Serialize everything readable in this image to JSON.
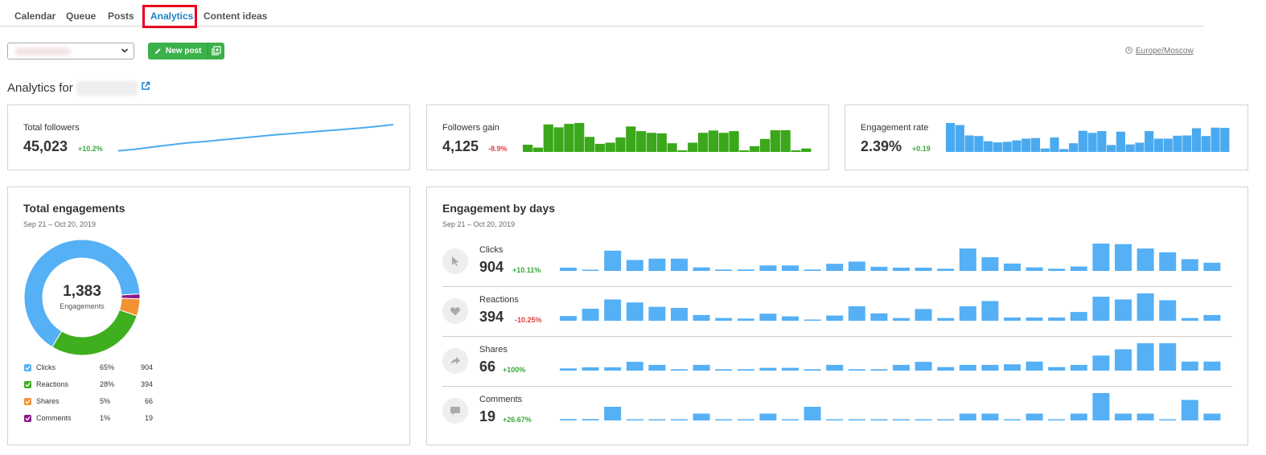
{
  "tabs": [
    {
      "label": "Calendar"
    },
    {
      "label": "Queue"
    },
    {
      "label": "Posts"
    },
    {
      "label": "Analytics"
    },
    {
      "label": "Content ideas"
    }
  ],
  "toolbar": {
    "new_post_label": "New post",
    "timezone": "Europe/Moscow"
  },
  "analytics_title": "Analytics for",
  "colors": {
    "accent": "#1e80c2",
    "green_button": "#3bb14a",
    "bar_blue": "#4aaaf0",
    "bar_green": "#3aa81a",
    "clicks": "#55b0f5",
    "reactions": "#3fae1f",
    "shares": "#f39233",
    "comments": "#8b1a8b"
  },
  "summary": {
    "total_followers": {
      "label": "Total followers",
      "value": "45,023",
      "change": "+10.2%"
    },
    "followers_gain": {
      "label": "Followers gain",
      "value": "4,125",
      "change": "-8.9%"
    },
    "engagement_rate": {
      "label": "Engagement rate",
      "value": "2.39%",
      "change": "+0.19"
    }
  },
  "total_engagements": {
    "title": "Total engagements",
    "date_range": "Sep 21 – Oct 20, 2019",
    "total": "1,383",
    "total_label": "Engagements",
    "legend": [
      {
        "label": "Clicks",
        "pct": "65%",
        "value": "904",
        "color": "#55b0f5"
      },
      {
        "label": "Reactions",
        "pct": "28%",
        "value": "394",
        "color": "#3fae1f"
      },
      {
        "label": "Shares",
        "pct": "5%",
        "value": "66",
        "color": "#f39233"
      },
      {
        "label": "Comments",
        "pct": "1%",
        "value": "19",
        "color": "#8b1a8b"
      }
    ]
  },
  "engagement_by_days": {
    "title": "Engagement by days",
    "date_range": "Sep 21 – Oct 20, 2019",
    "rows": [
      {
        "label": "Clicks",
        "value": "904",
        "change": "+10.11%",
        "icon": "cursor-icon"
      },
      {
        "label": "Reactions",
        "value": "394",
        "change": "-10.25%",
        "icon": "heart-icon"
      },
      {
        "label": "Shares",
        "value": "66",
        "change": "+100%",
        "icon": "share-arrow-icon"
      },
      {
        "label": "Comments",
        "value": "19",
        "change": "+26.67%",
        "icon": "comment-icon"
      }
    ]
  },
  "chart_data": [
    {
      "type": "line",
      "name": "followers_trend",
      "values": [
        0.04,
        0.1,
        0.18,
        0.26,
        0.33,
        0.38,
        0.44,
        0.5,
        0.56,
        0.62,
        0.67,
        0.72,
        0.77,
        0.82,
        0.87,
        0.93,
        1.0
      ]
    },
    {
      "type": "bar",
      "name": "followers_gain_daily",
      "values": [
        0.25,
        0.15,
        0.95,
        0.85,
        0.97,
        1.0,
        0.52,
        0.28,
        0.32,
        0.5,
        0.88,
        0.72,
        0.66,
        0.64,
        0.3,
        0.02,
        0.32,
        0.66,
        0.74,
        0.66,
        0.72,
        0.05,
        0.2,
        0.45,
        0.75,
        0.75,
        0.03,
        0.12
      ]
    },
    {
      "type": "bar",
      "name": "engagement_rate_daily",
      "values": [
        1.0,
        0.93,
        0.57,
        0.55,
        0.37,
        0.33,
        0.35,
        0.4,
        0.46,
        0.48,
        0.12,
        0.5,
        0.1,
        0.3,
        0.73,
        0.66,
        0.72,
        0.24,
        0.7,
        0.26,
        0.32,
        0.72,
        0.46,
        0.46,
        0.56,
        0.57,
        0.82,
        0.55,
        0.84,
        0.83
      ]
    },
    {
      "type": "pie",
      "name": "total_engagements",
      "categories": [
        "Clicks",
        "Reactions",
        "Shares",
        "Comments"
      ],
      "values": [
        904,
        394,
        66,
        19
      ]
    },
    {
      "type": "bar",
      "name": "engagement_by_days",
      "series": [
        {
          "name": "Clicks",
          "values": [
            0.12,
            0.03,
            0.74,
            0.4,
            0.45,
            0.45,
            0.13,
            0.05,
            0.05,
            0.2,
            0.2,
            0.05,
            0.26,
            0.34,
            0.15,
            0.12,
            0.12,
            0.08,
            0.82,
            0.5,
            0.27,
            0.13,
            0.08,
            0.16,
            1.0,
            0.98,
            0.82,
            0.68,
            0.43,
            0.3
          ]
        },
        {
          "name": "Reactions",
          "values": [
            0.17,
            0.44,
            0.78,
            0.67,
            0.51,
            0.47,
            0.21,
            0.1,
            0.08,
            0.26,
            0.16,
            0.03,
            0.19,
            0.53,
            0.27,
            0.1,
            0.43,
            0.1,
            0.53,
            0.72,
            0.12,
            0.12,
            0.12,
            0.32,
            0.88,
            0.78,
            1.0,
            0.75,
            0.1,
            0.21
          ]
        },
        {
          "name": "Shares",
          "values": [
            0.08,
            0.12,
            0.12,
            0.32,
            0.21,
            0.05,
            0.21,
            0.05,
            0.05,
            0.1,
            0.1,
            0.05,
            0.21,
            0.05,
            0.05,
            0.21,
            0.32,
            0.13,
            0.21,
            0.21,
            0.23,
            0.33,
            0.13,
            0.21,
            0.55,
            0.78,
            1.0,
            1.0,
            0.33,
            0.33
          ]
        },
        {
          "name": "Comments",
          "values": [
            0.05,
            0.05,
            0.5,
            0.03,
            0.03,
            0.03,
            0.25,
            0.03,
            0.03,
            0.25,
            0.03,
            0.5,
            0.03,
            0.03,
            0.03,
            0.03,
            0.03,
            0.03,
            0.25,
            0.25,
            0.03,
            0.25,
            0.03,
            0.25,
            1.0,
            0.25,
            0.25,
            0.03,
            0.75,
            0.25
          ]
        }
      ]
    }
  ]
}
